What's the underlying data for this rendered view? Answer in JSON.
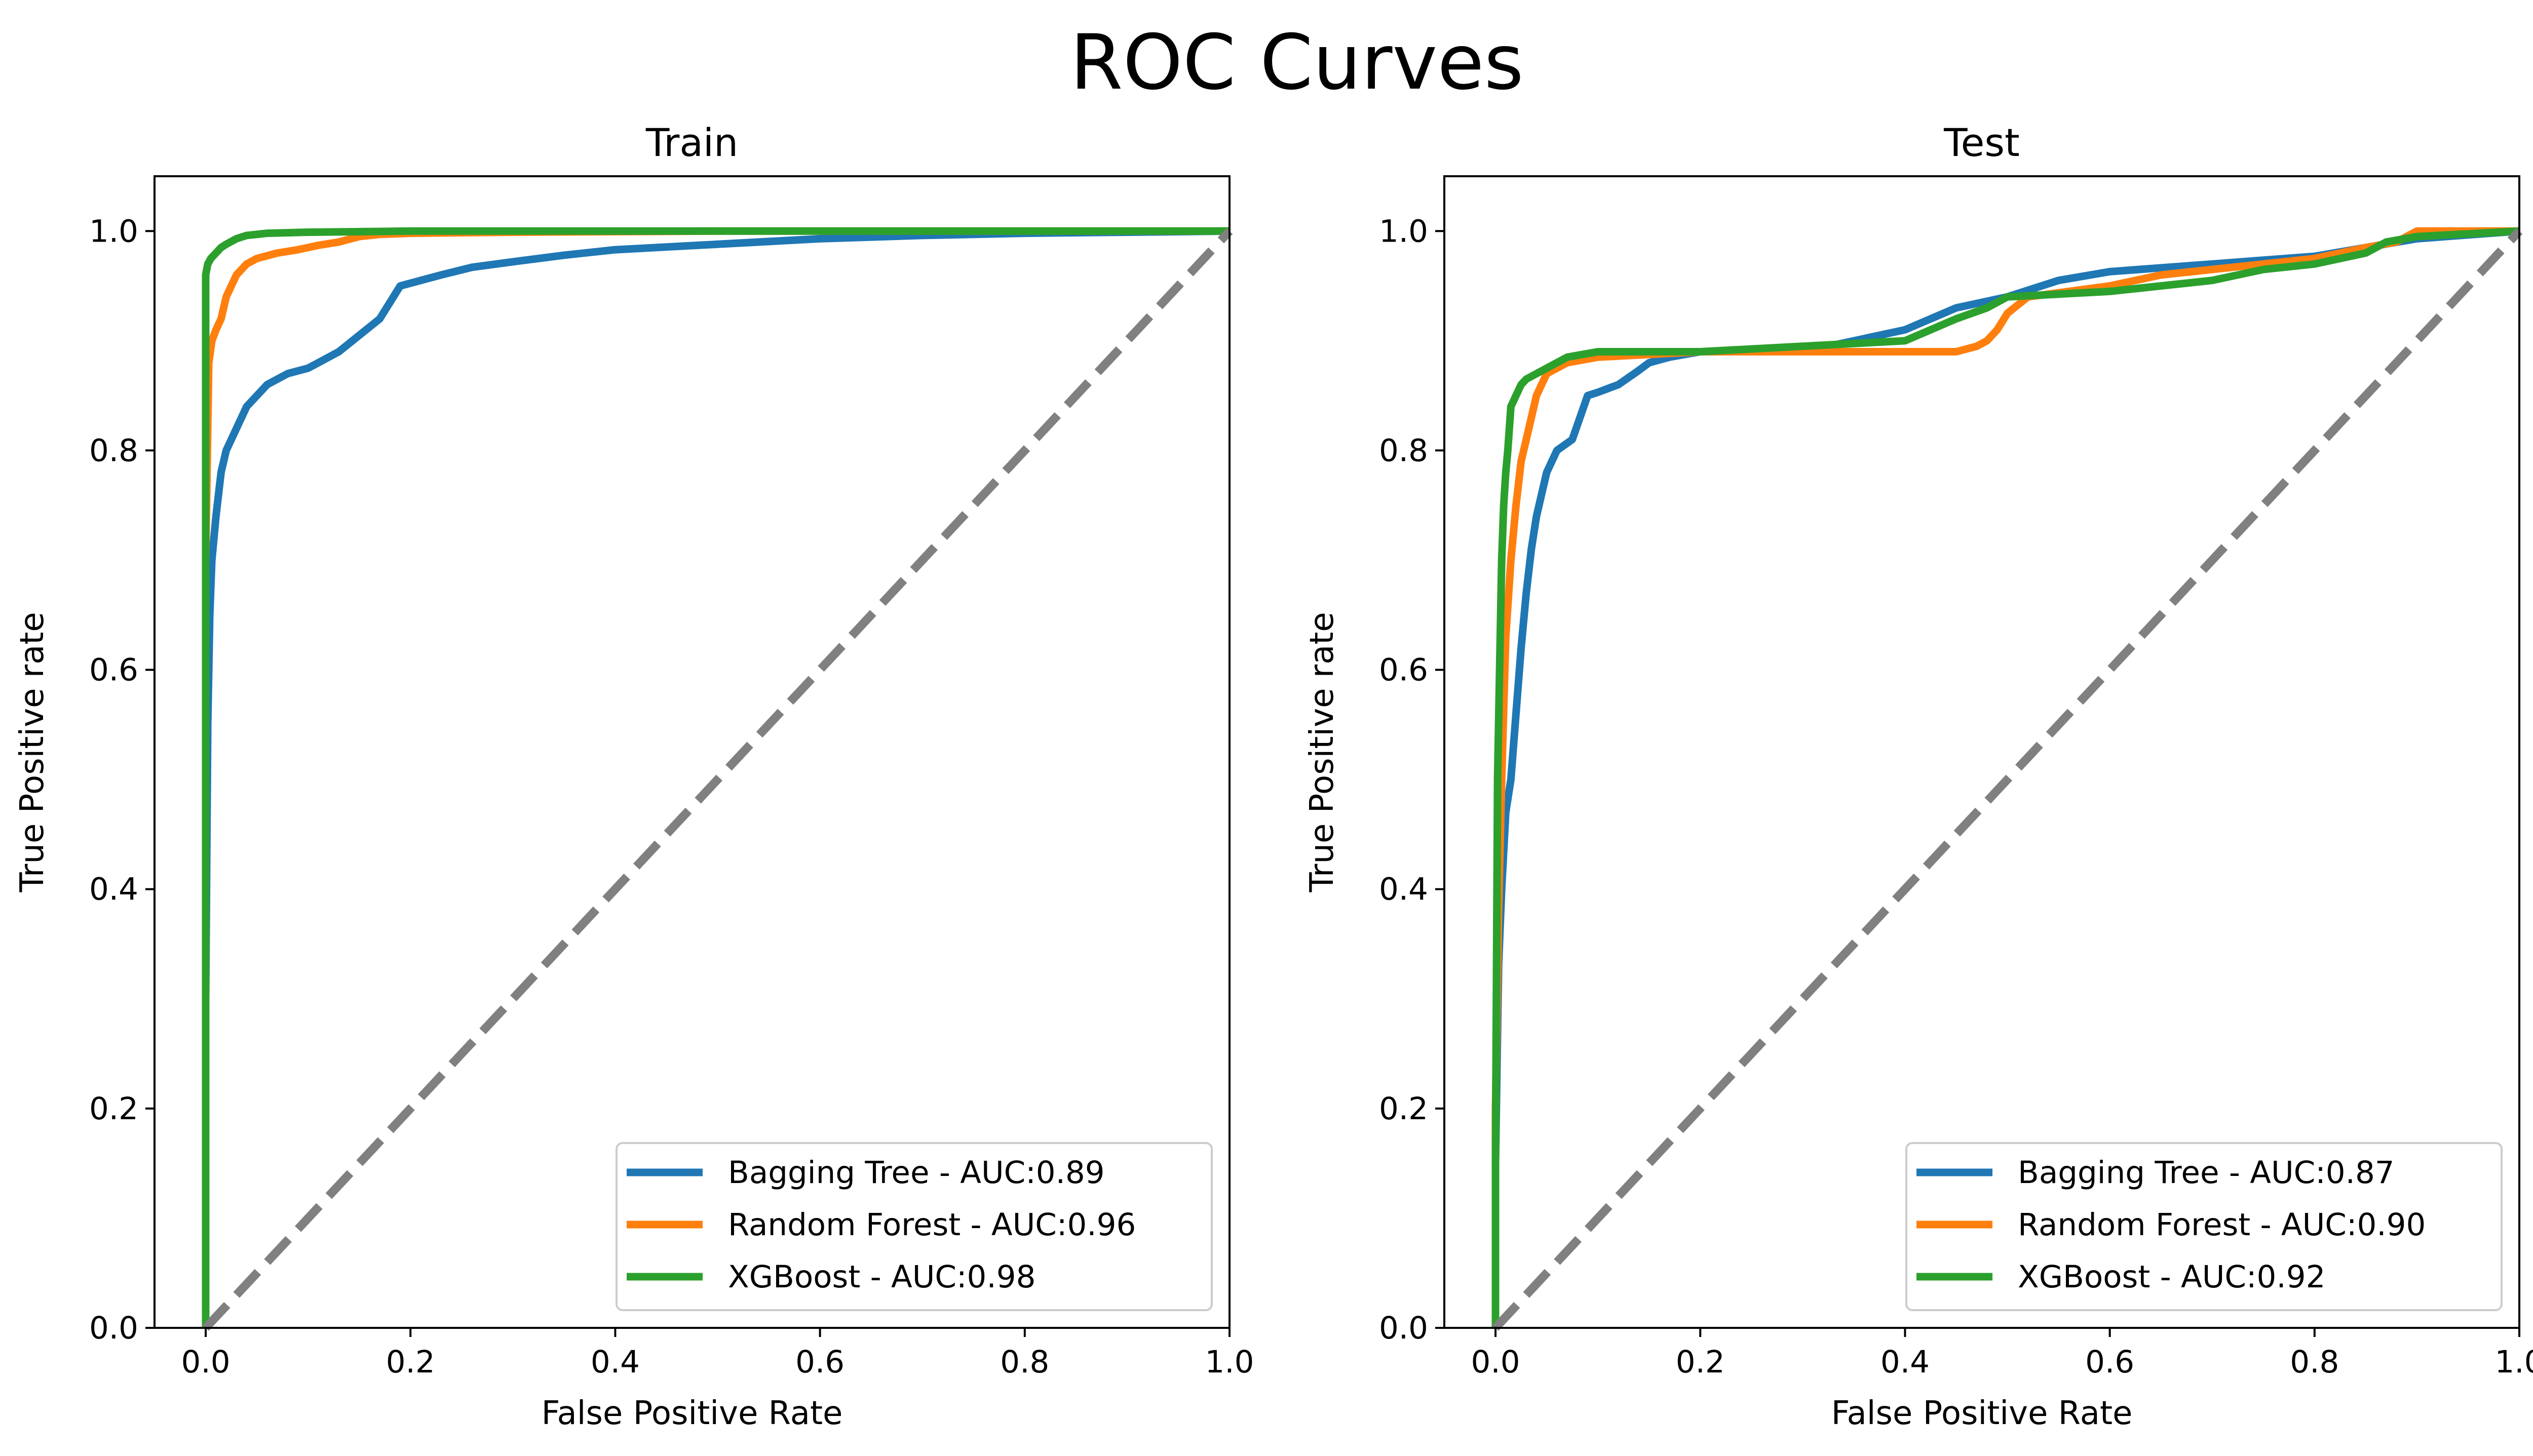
{
  "figure": {
    "title": "ROC Curves"
  },
  "colors": {
    "Bagging Tree": "#1f77b4",
    "Random Forest": "#ff7f0e",
    "XGBoost": "#2ca02c",
    "diagonal": "#808080"
  },
  "chart_data": [
    {
      "type": "line",
      "title": "Train",
      "xlabel": "False Positive Rate",
      "ylabel": "True Positive rate",
      "xlim": [
        -0.05,
        1.0
      ],
      "ylim": [
        0.0,
        1.05
      ],
      "xticks": [
        "0.0",
        "0.2",
        "0.4",
        "0.6",
        "0.8",
        "1.0"
      ],
      "yticks": [
        "0.0",
        "0.2",
        "0.4",
        "0.6",
        "0.8",
        "1.0"
      ],
      "legend_position": "lower-right",
      "reference_line": {
        "style": "dashed",
        "x": [
          0,
          1
        ],
        "y": [
          0,
          1
        ]
      },
      "series": [
        {
          "name": "Bagging Tree - AUC:0.89",
          "x": [
            0.0,
            0.0,
            0.002,
            0.004,
            0.006,
            0.01,
            0.015,
            0.02,
            0.03,
            0.04,
            0.05,
            0.06,
            0.08,
            0.1,
            0.11,
            0.13,
            0.15,
            0.17,
            0.19,
            0.21,
            0.23,
            0.26,
            0.3,
            0.35,
            0.4,
            0.5,
            0.6,
            0.7,
            0.8,
            0.9,
            1.0
          ],
          "y": [
            0.0,
            0.3,
            0.55,
            0.65,
            0.7,
            0.74,
            0.78,
            0.8,
            0.82,
            0.84,
            0.85,
            0.86,
            0.87,
            0.875,
            0.88,
            0.89,
            0.905,
            0.92,
            0.95,
            0.955,
            0.96,
            0.967,
            0.972,
            0.978,
            0.983,
            0.988,
            0.993,
            0.996,
            0.998,
            0.999,
            1.0
          ]
        },
        {
          "name": "Random Forest - AUC:0.96",
          "x": [
            0.0,
            0.0,
            0.003,
            0.006,
            0.01,
            0.015,
            0.02,
            0.025,
            0.03,
            0.04,
            0.05,
            0.07,
            0.09,
            0.11,
            0.13,
            0.15,
            0.17,
            0.2,
            0.3,
            0.5,
            0.75,
            1.0
          ],
          "y": [
            0.0,
            0.7,
            0.88,
            0.9,
            0.91,
            0.92,
            0.94,
            0.95,
            0.96,
            0.97,
            0.975,
            0.98,
            0.983,
            0.987,
            0.99,
            0.995,
            0.997,
            0.998,
            0.999,
            1.0,
            1.0,
            1.0
          ]
        },
        {
          "name": "XGBoost - AUC:0.98",
          "x": [
            0.0,
            0.0,
            0.002,
            0.005,
            0.01,
            0.015,
            0.02,
            0.03,
            0.04,
            0.06,
            0.1,
            0.2,
            0.5,
            1.0
          ],
          "y": [
            0.0,
            0.96,
            0.97,
            0.975,
            0.98,
            0.985,
            0.988,
            0.993,
            0.996,
            0.998,
            0.999,
            1.0,
            1.0,
            1.0
          ]
        }
      ]
    },
    {
      "type": "line",
      "title": "Test",
      "xlabel": "False Positive Rate",
      "ylabel": "True Positive rate",
      "xlim": [
        -0.05,
        1.0
      ],
      "ylim": [
        0.0,
        1.05
      ],
      "xticks": [
        "0.0",
        "0.2",
        "0.4",
        "0.6",
        "0.8",
        "1.0"
      ],
      "yticks": [
        "0.0",
        "0.2",
        "0.4",
        "0.6",
        "0.8",
        "1.0"
      ],
      "legend_position": "lower-right",
      "reference_line": {
        "style": "dashed",
        "x": [
          0,
          1
        ],
        "y": [
          0,
          1
        ]
      },
      "series": [
        {
          "name": "Bagging Tree - AUC:0.87",
          "x": [
            0.0,
            0.0,
            0.003,
            0.006,
            0.01,
            0.015,
            0.02,
            0.025,
            0.03,
            0.035,
            0.04,
            0.045,
            0.05,
            0.06,
            0.075,
            0.09,
            0.1,
            0.12,
            0.14,
            0.15,
            0.17,
            0.2,
            0.3,
            0.35,
            0.4,
            0.45,
            0.5,
            0.55,
            0.6,
            0.7,
            0.8,
            0.85,
            0.9,
            1.0
          ],
          "y": [
            0.0,
            0.15,
            0.33,
            0.4,
            0.47,
            0.5,
            0.56,
            0.62,
            0.67,
            0.71,
            0.74,
            0.76,
            0.78,
            0.8,
            0.81,
            0.85,
            0.853,
            0.86,
            0.873,
            0.88,
            0.885,
            0.89,
            0.89,
            0.9,
            0.91,
            0.93,
            0.94,
            0.955,
            0.963,
            0.97,
            0.977,
            0.985,
            0.993,
            1.0
          ]
        },
        {
          "name": "Random Forest - AUC:0.90",
          "x": [
            0.0,
            0.0,
            0.003,
            0.006,
            0.01,
            0.015,
            0.02,
            0.025,
            0.03,
            0.035,
            0.04,
            0.05,
            0.07,
            0.1,
            0.2,
            0.3,
            0.45,
            0.47,
            0.48,
            0.49,
            0.5,
            0.52,
            0.6,
            0.65,
            0.7,
            0.75,
            0.8,
            0.85,
            0.88,
            0.9,
            1.0
          ],
          "y": [
            0.0,
            0.2,
            0.38,
            0.5,
            0.63,
            0.7,
            0.75,
            0.79,
            0.81,
            0.83,
            0.85,
            0.87,
            0.88,
            0.885,
            0.89,
            0.89,
            0.89,
            0.895,
            0.9,
            0.91,
            0.925,
            0.94,
            0.95,
            0.96,
            0.965,
            0.97,
            0.975,
            0.985,
            0.99,
            1.0,
            1.0
          ]
        },
        {
          "name": "XGBoost - AUC:0.92",
          "x": [
            0.0,
            0.0,
            0.002,
            0.004,
            0.006,
            0.008,
            0.01,
            0.012,
            0.015,
            0.02,
            0.025,
            0.03,
            0.04,
            0.05,
            0.07,
            0.1,
            0.2,
            0.3,
            0.4,
            0.45,
            0.48,
            0.5,
            0.6,
            0.7,
            0.75,
            0.8,
            0.85,
            0.87,
            0.9,
            1.0
          ],
          "y": [
            0.0,
            0.15,
            0.5,
            0.6,
            0.7,
            0.75,
            0.78,
            0.8,
            0.84,
            0.85,
            0.86,
            0.865,
            0.87,
            0.875,
            0.885,
            0.89,
            0.89,
            0.895,
            0.9,
            0.92,
            0.93,
            0.94,
            0.945,
            0.955,
            0.965,
            0.97,
            0.98,
            0.99,
            0.995,
            1.0
          ]
        }
      ]
    }
  ]
}
